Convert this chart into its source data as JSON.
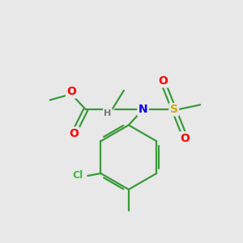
{
  "background_color": "#e8e8e8",
  "bond_color": "#3a9a3a",
  "atom_colors": {
    "O": "#ff0000",
    "N": "#0000ee",
    "S": "#ccaa00",
    "Cl": "#44bb44",
    "H": "#777777",
    "C": "#000000"
  },
  "figsize": [
    3.0,
    3.0
  ],
  "dpi": 100
}
